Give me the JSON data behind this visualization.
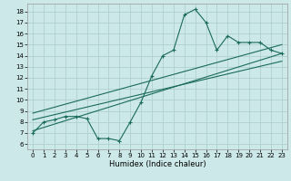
{
  "xlabel": "Humidex (Indice chaleur)",
  "bg_color": "#cce8e8",
  "grid_color": "#b0d0d0",
  "line_color": "#1a6b5a",
  "xlim": [
    -0.5,
    23.5
  ],
  "ylim": [
    5.5,
    18.7
  ],
  "xticks": [
    0,
    1,
    2,
    3,
    4,
    5,
    6,
    7,
    8,
    9,
    10,
    11,
    12,
    13,
    14,
    15,
    16,
    17,
    18,
    19,
    20,
    21,
    22,
    23
  ],
  "yticks": [
    6,
    7,
    8,
    9,
    10,
    11,
    12,
    13,
    14,
    15,
    16,
    17,
    18
  ],
  "line1_x": [
    0,
    1,
    2,
    3,
    4,
    5,
    6,
    7,
    8,
    9,
    10,
    11,
    12,
    13,
    14,
    15,
    16,
    17,
    18,
    19,
    20,
    21,
    22,
    23
  ],
  "line1_y": [
    7.0,
    8.0,
    8.2,
    8.5,
    8.5,
    8.3,
    6.5,
    6.5,
    6.3,
    8.0,
    9.8,
    12.2,
    14.0,
    14.5,
    17.7,
    18.2,
    17.0,
    14.5,
    15.8,
    15.2,
    15.2,
    15.2,
    14.5,
    14.2
  ],
  "line2_x": [
    0,
    23
  ],
  "line2_y": [
    7.2,
    14.2
  ],
  "line3_x": [
    0,
    23
  ],
  "line3_y": [
    8.2,
    13.5
  ],
  "line4_x": [
    0,
    23
  ],
  "line4_y": [
    8.8,
    15.0
  ],
  "xlabel_fontsize": 6,
  "tick_fontsize": 5,
  "linewidth": 0.8,
  "markersize": 3.0,
  "markeredgewidth": 0.8
}
